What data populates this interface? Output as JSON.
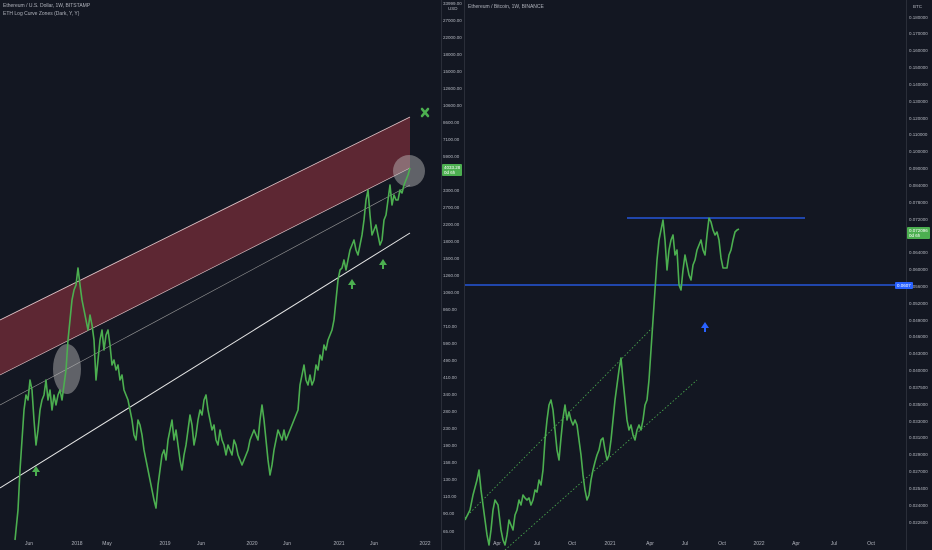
{
  "left_chart": {
    "legend_title": "Ethereum / U.S. Dollar, 1W, BITSTAMP",
    "indicator_label": "ETH Log Curve Zones (Dark, Y, Y)",
    "unit": "USD",
    "top_tick": "33999.00",
    "price_tag": [
      "4033.28",
      "0d 6h"
    ],
    "y_ticks": [
      "27000.00",
      "22000.00",
      "18000.00",
      "15000.00",
      "12600.00",
      "10600.00",
      "8600.00",
      "7100.00",
      "5900.00",
      "4900.00",
      "3300.00",
      "2700.00",
      "2200.00",
      "1800.00",
      "1500.00",
      "1260.00",
      "1060.00",
      "860.00",
      "710.00",
      "590.00",
      "490.00",
      "410.00",
      "340.00",
      "280.00",
      "230.00",
      "190.00",
      "158.00",
      "130.00",
      "110.00",
      "90.00",
      "65.00"
    ],
    "x_ticks": [
      "Jun",
      "2018",
      "May",
      "2019",
      "Jun",
      "2020",
      "Jun",
      "2021",
      "Jun",
      "2022"
    ],
    "close_icon": "x-icon",
    "colors": {
      "line": "#4caf50",
      "zone_fill": "#6b2a36",
      "zone_edge": "#e0c5c9",
      "trend_line": "#e6e6e6",
      "arrow": "#4caf50",
      "highlight": "#bfbfbf"
    },
    "arrow_icon": "arrow-up-icon"
  },
  "right_chart": {
    "legend_title": "Ethereum / Bitcoin, 1W, BINANCE",
    "unit": "BTC",
    "price_tag": [
      "0.072096",
      "0d 6h"
    ],
    "y_ticks": [
      "0.180000",
      "0.170000",
      "0.160000",
      "0.150000",
      "0.140000",
      "0.130000",
      "0.120000",
      "0.110000",
      "0.100000",
      "0.090000",
      "0.084000",
      "0.078000",
      "0.072000",
      "0.068000",
      "0.064000",
      "0.060000",
      "0.056000",
      "0.052000",
      "0.049000",
      "0.046000",
      "0.043000",
      "0.040000",
      "0.037500",
      "0.035000",
      "0.033000",
      "0.031000",
      "0.029000",
      "0.027000",
      "0.025400",
      "0.024000",
      "0.022600"
    ],
    "x_ticks": [
      "Apr",
      "Jul",
      "Oct",
      "2021",
      "Apr",
      "Jul",
      "Oct",
      "2022",
      "Apr",
      "Jul",
      "Oct"
    ],
    "level_tag": "0.0607",
    "colors": {
      "line": "#4caf50",
      "hline": "#2962ff",
      "channel": "#4caf50",
      "arrow": "#2962ff"
    },
    "arrow_icon": "arrow-up-icon"
  }
}
